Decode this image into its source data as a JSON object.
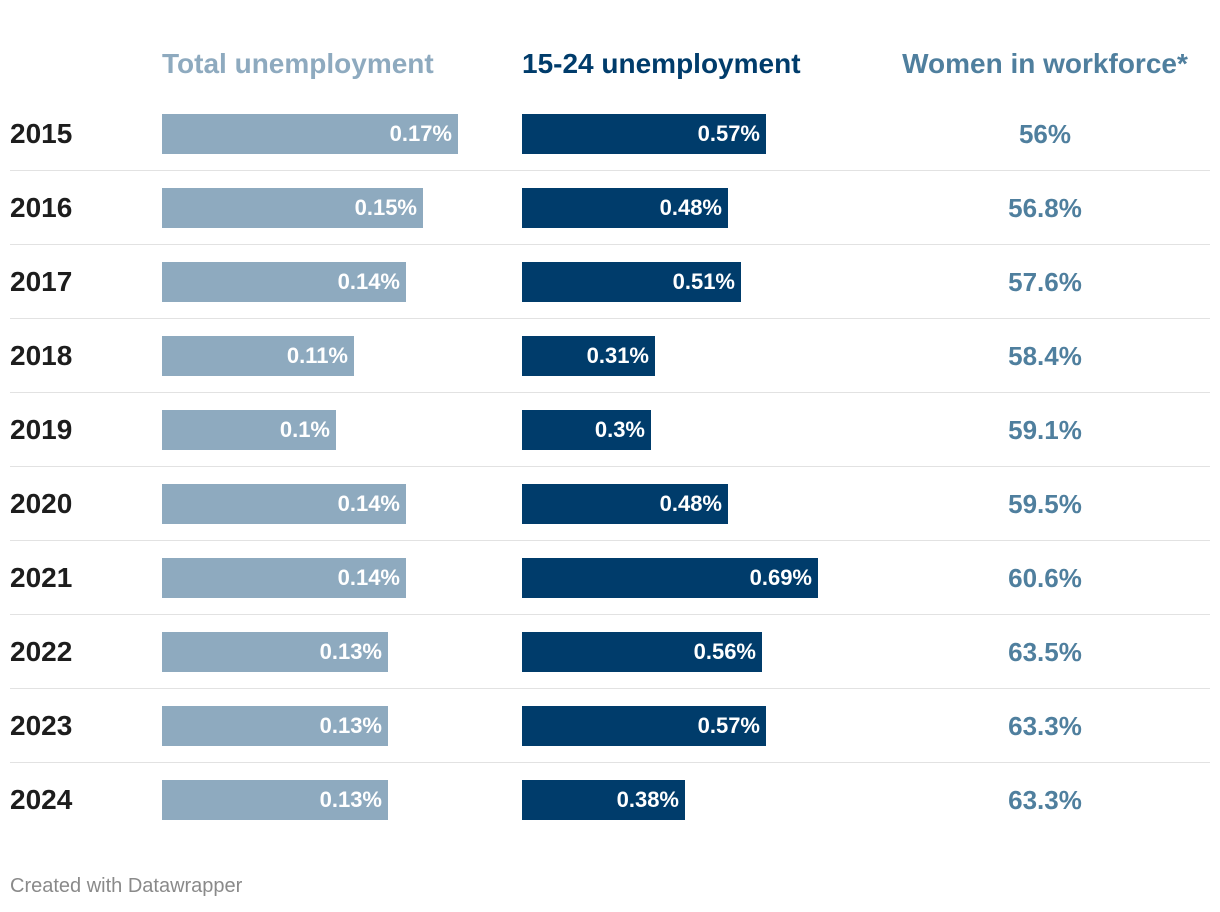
{
  "chart_data": {
    "type": "table",
    "columns": [
      "Total unemployment",
      "15-24 unemployment",
      "Women in workforce*"
    ],
    "categories": [
      "2015",
      "2016",
      "2017",
      "2018",
      "2019",
      "2020",
      "2021",
      "2022",
      "2023",
      "2024"
    ],
    "series": [
      {
        "name": "Total unemployment",
        "values": [
          0.17,
          0.15,
          0.14,
          0.11,
          0.1,
          0.14,
          0.14,
          0.13,
          0.13,
          0.13
        ],
        "labels": [
          "0.17%",
          "0.15%",
          "0.14%",
          "0.11%",
          "0.1%",
          "0.14%",
          "0.14%",
          "0.13%",
          "0.13%",
          "0.13%"
        ],
        "color": "#8eaabf"
      },
      {
        "name": "15-24 unemployment",
        "values": [
          0.57,
          0.48,
          0.51,
          0.31,
          0.3,
          0.48,
          0.69,
          0.56,
          0.57,
          0.38
        ],
        "labels": [
          "0.57%",
          "0.48%",
          "0.51%",
          "0.31%",
          "0.3%",
          "0.48%",
          "0.69%",
          "0.56%",
          "0.57%",
          "0.38%"
        ],
        "color": "#003c6b"
      },
      {
        "name": "Women in workforce*",
        "values": [
          56,
          56.8,
          57.6,
          58.4,
          59.1,
          59.5,
          60.6,
          63.5,
          63.3,
          63.3
        ],
        "labels": [
          "56%",
          "56.8%",
          "57.6%",
          "58.4%",
          "59.1%",
          "59.5%",
          "60.6%",
          "63.5%",
          "63.3%",
          "63.3%"
        ],
        "color": "#4f7f9e"
      }
    ]
  },
  "footer": "Created with Datawrapper"
}
